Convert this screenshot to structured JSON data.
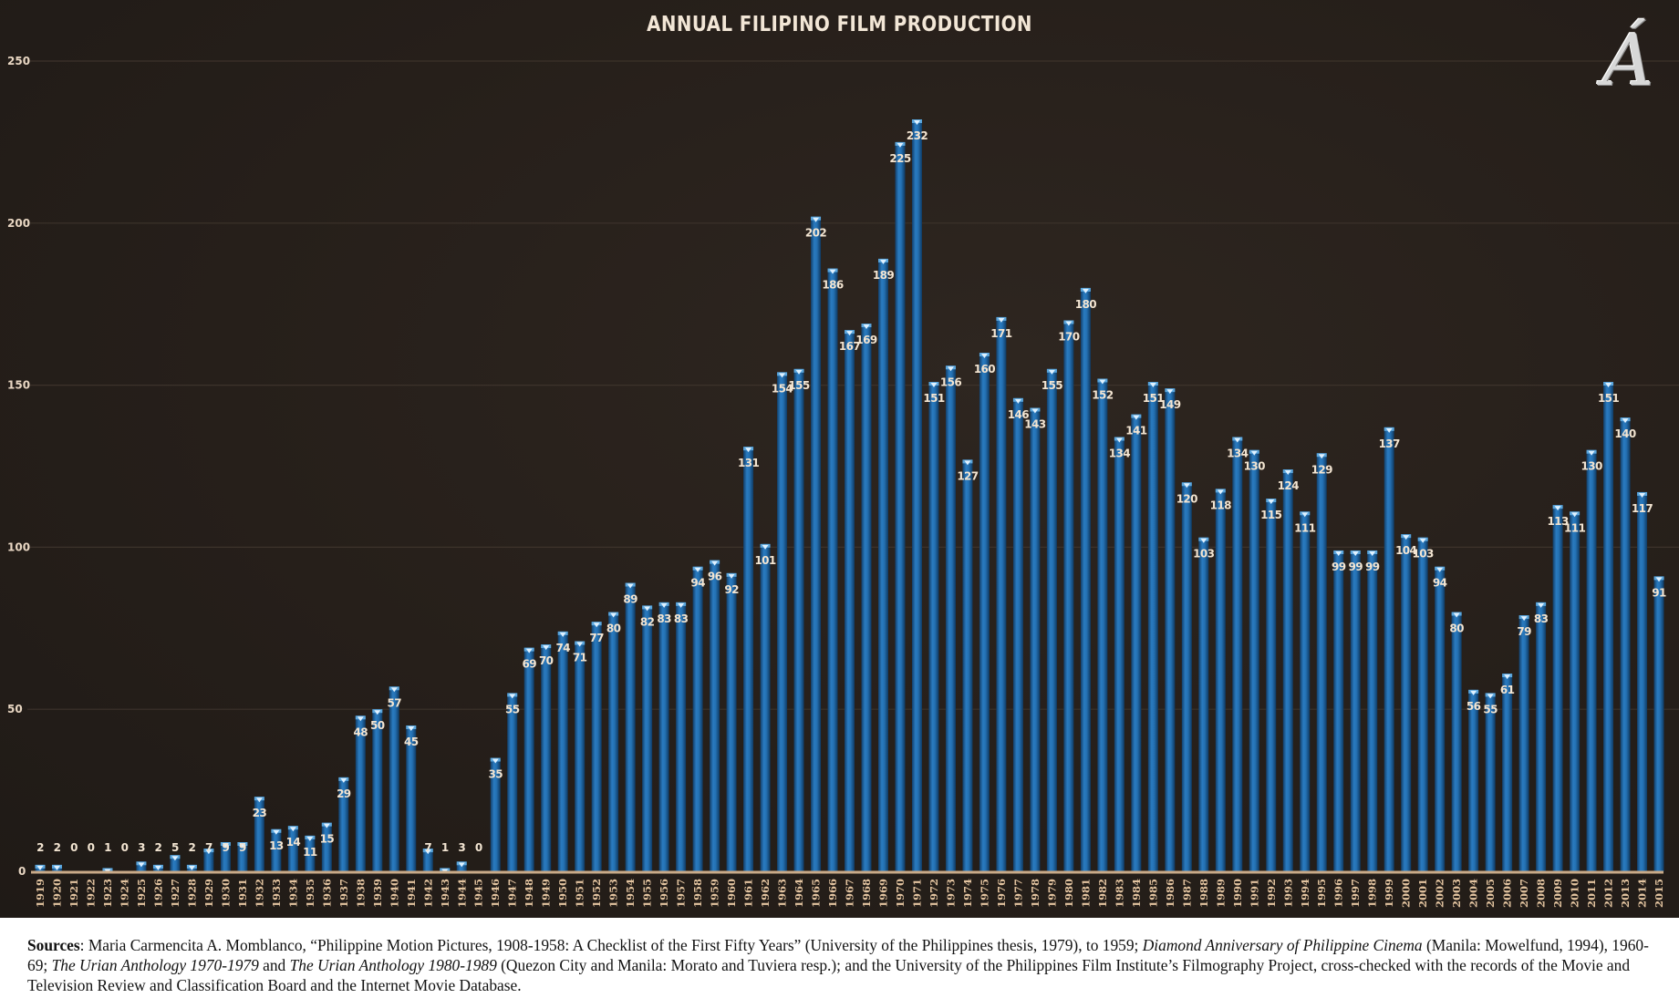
{
  "logo": {
    "glyph": "Á"
  },
  "chart_data": {
    "type": "bar",
    "title": "ANNUAL FILIPINO FILM PRODUCTION",
    "xlabel": "",
    "ylabel": "",
    "ylim": [
      0,
      250
    ],
    "yticks": [
      0,
      50,
      100,
      150,
      200,
      250
    ],
    "grid": true,
    "legend": "none",
    "data_labels": true,
    "bar_color": "#1f6aa8",
    "categories": [
      "1919",
      "1920",
      "1921",
      "1922",
      "1923",
      "1924",
      "1925",
      "1926",
      "1927",
      "1928",
      "1929",
      "1930",
      "1931",
      "1932",
      "1933",
      "1934",
      "1935",
      "1936",
      "1937",
      "1938",
      "1939",
      "1940",
      "1941",
      "1942",
      "1943",
      "1944",
      "1945",
      "1946",
      "1947",
      "1948",
      "1949",
      "1950",
      "1951",
      "1952",
      "1953",
      "1954",
      "1955",
      "1956",
      "1957",
      "1958",
      "1959",
      "1960",
      "1961",
      "1962",
      "1963",
      "1964",
      "1965",
      "1966",
      "1967",
      "1968",
      "1969",
      "1970",
      "1971",
      "1972",
      "1973",
      "1974",
      "1975",
      "1976",
      "1977",
      "1978",
      "1979",
      "1980",
      "1981",
      "1982",
      "1983",
      "1984",
      "1985",
      "1986",
      "1987",
      "1988",
      "1989",
      "1990",
      "1991",
      "1992",
      "1993",
      "1994",
      "1995",
      "1996",
      "1997",
      "1998",
      "1999",
      "2000",
      "2001",
      "2002",
      "2003",
      "2004",
      "2005",
      "2006",
      "2007",
      "2008",
      "2009",
      "2010",
      "2011",
      "2012",
      "2013",
      "2014",
      "2015"
    ],
    "values": [
      2,
      2,
      0,
      0,
      1,
      0,
      3,
      2,
      5,
      2,
      7,
      9,
      9,
      23,
      13,
      14,
      11,
      15,
      29,
      48,
      50,
      57,
      45,
      7,
      1,
      3,
      0,
      35,
      55,
      69,
      70,
      74,
      71,
      77,
      80,
      89,
      82,
      83,
      83,
      94,
      96,
      92,
      131,
      101,
      154,
      155,
      202,
      186,
      167,
      169,
      189,
      225,
      232,
      151,
      156,
      127,
      160,
      171,
      146,
      143,
      155,
      170,
      180,
      152,
      134,
      141,
      151,
      149,
      120,
      103,
      118,
      134,
      130,
      115,
      124,
      111,
      129,
      99,
      99,
      99,
      137,
      104,
      103,
      94,
      80,
      56,
      55,
      61,
      79,
      83,
      113,
      111,
      130,
      151,
      140,
      117,
      91
    ]
  },
  "sources": {
    "lead": "Sources",
    "p1": ": Maria Carmencita A. Momblanco, “Philippine Motion Pictures, 1908-1958: A Checklist of the First Fifty Years” (University of the Philippines thesis, 1979), to 1959; ",
    "i1": "Diamond Anniversary of Philippine Cinema",
    "p2": " (Manila: Mowelfund, 1994), 1960-69; ",
    "i2": "The Urian Anthology 1970-1979",
    "p3": " and ",
    "i3": "The Urian Anthology 1980-1989",
    "p4": " (Quezon City and Manila: Morato and Tuviera resp.); and the University of the Philippines Film Institute’s Filmography Project, cross-checked with the records of the Movie and Television Review and Classification Board and the Internet Movie Database."
  }
}
